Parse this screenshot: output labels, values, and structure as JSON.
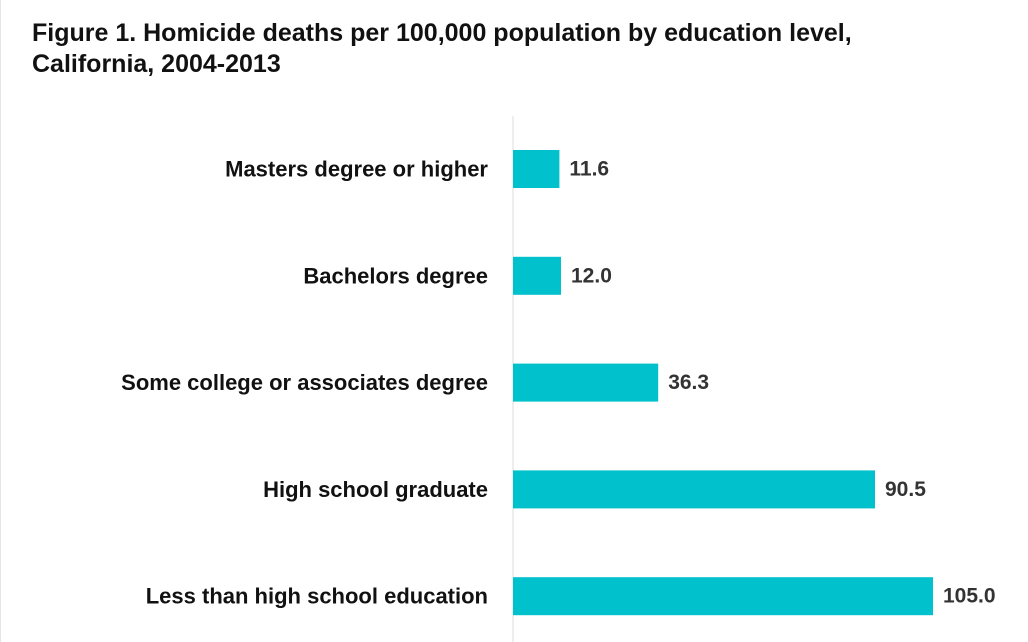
{
  "chart_data": {
    "type": "bar",
    "orientation": "horizontal",
    "title": "Figure 1. Homicide deaths per 100,000 population by education level, California, 2004-2013",
    "categories": [
      "Masters degree or higher",
      "Bachelors degree",
      "Some college or associates degree",
      "High school graduate",
      "Less than high school education"
    ],
    "values": [
      11.6,
      12.0,
      36.3,
      90.5,
      105.0
    ],
    "value_labels": [
      "11.6",
      "12.0",
      "36.3",
      "90.5",
      "105.0"
    ],
    "xlabel": "",
    "ylabel": "",
    "xlim": [
      0,
      120
    ],
    "grid": false,
    "legend": "none",
    "bar_color": "#00C1CC",
    "axis_color": "#dcdcdc"
  }
}
